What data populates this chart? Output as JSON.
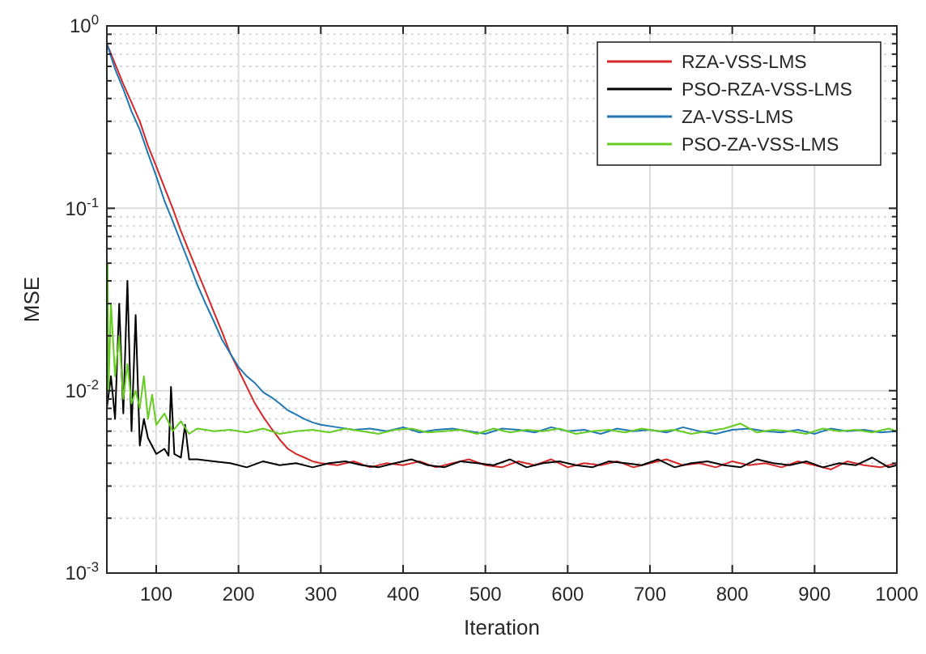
{
  "chart_data": {
    "type": "line",
    "xlabel": "Iteration",
    "ylabel": "MSE",
    "log": "y",
    "grid": true,
    "legend": "top right",
    "line_style": "solid",
    "marker": "none",
    "xlim": [
      40,
      1000
    ],
    "xticks": [
      100,
      200,
      300,
      400,
      500,
      600,
      700,
      800,
      900,
      1000
    ],
    "ylim": [
      0.001,
      1
    ],
    "yticks": [
      {
        "value": 0.001,
        "label": "10$^{-3}$"
      },
      {
        "value": 0.01,
        "label": "10$^{-2}$"
      },
      {
        "value": 0.1,
        "label": "10$^{-1}$"
      },
      {
        "value": 1,
        "label": "10$^{0}$"
      }
    ],
    "series": [
      {
        "name": "RZA-VSS-LMS",
        "color": "#d62728",
        "x": [
          40,
          50,
          60,
          70,
          80,
          90,
          100,
          110,
          120,
          130,
          140,
          150,
          160,
          170,
          180,
          190,
          200,
          210,
          220,
          230,
          240,
          250,
          260,
          270,
          280,
          290,
          300,
          320,
          340,
          360,
          380,
          400,
          420,
          440,
          460,
          480,
          500,
          520,
          540,
          560,
          580,
          600,
          620,
          640,
          660,
          680,
          700,
          720,
          740,
          760,
          780,
          800,
          820,
          840,
          860,
          880,
          900,
          920,
          940,
          960,
          980,
          1000
        ],
        "values": [
          0.8,
          0.62,
          0.48,
          0.38,
          0.3,
          0.22,
          0.17,
          0.13,
          0.1,
          0.075,
          0.058,
          0.045,
          0.035,
          0.027,
          0.021,
          0.016,
          0.013,
          0.0105,
          0.0085,
          0.0072,
          0.0062,
          0.0054,
          0.0048,
          0.0045,
          0.0043,
          0.0041,
          0.004,
          0.0039,
          0.0041,
          0.0038,
          0.004,
          0.0039,
          0.0041,
          0.0038,
          0.004,
          0.0042,
          0.0039,
          0.0038,
          0.0041,
          0.0039,
          0.0042,
          0.0038,
          0.004,
          0.0039,
          0.0041,
          0.0038,
          0.004,
          0.0042,
          0.0039,
          0.004,
          0.0038,
          0.0041,
          0.0039,
          0.004,
          0.0038,
          0.0041,
          0.0039,
          0.0037,
          0.0041,
          0.0039,
          0.0038,
          0.004
        ]
      },
      {
        "name": "PSO-RZA-VSS-LMS",
        "color": "#000000",
        "x": [
          40,
          45,
          50,
          55,
          60,
          65,
          70,
          75,
          80,
          85,
          90,
          100,
          110,
          115,
          118,
          122,
          130,
          135,
          140,
          150,
          170,
          190,
          210,
          230,
          250,
          270,
          290,
          310,
          330,
          350,
          370,
          390,
          410,
          430,
          450,
          470,
          490,
          510,
          530,
          550,
          570,
          590,
          610,
          630,
          650,
          670,
          690,
          710,
          730,
          750,
          770,
          790,
          810,
          830,
          850,
          870,
          890,
          910,
          930,
          950,
          970,
          990,
          1000
        ],
        "values": [
          0.008,
          0.012,
          0.007,
          0.03,
          0.0075,
          0.04,
          0.006,
          0.026,
          0.005,
          0.007,
          0.0055,
          0.0045,
          0.0048,
          0.0044,
          0.0105,
          0.0045,
          0.0043,
          0.0065,
          0.0042,
          0.0042,
          0.0041,
          0.004,
          0.0038,
          0.0041,
          0.0039,
          0.004,
          0.0038,
          0.004,
          0.0041,
          0.0039,
          0.0038,
          0.004,
          0.0042,
          0.0039,
          0.0038,
          0.0041,
          0.004,
          0.0039,
          0.0042,
          0.0038,
          0.004,
          0.0041,
          0.0039,
          0.0038,
          0.0041,
          0.004,
          0.0039,
          0.0042,
          0.0038,
          0.004,
          0.0041,
          0.0039,
          0.0038,
          0.0042,
          0.004,
          0.0039,
          0.0041,
          0.0038,
          0.004,
          0.0039,
          0.0043,
          0.0038,
          0.0039
        ]
      },
      {
        "name": "ZA-VSS-LMS",
        "color": "#1f77b4",
        "x": [
          40,
          50,
          60,
          70,
          80,
          90,
          100,
          110,
          120,
          130,
          140,
          150,
          160,
          170,
          180,
          190,
          200,
          210,
          220,
          230,
          240,
          250,
          260,
          270,
          280,
          290,
          300,
          320,
          340,
          360,
          380,
          400,
          420,
          440,
          460,
          480,
          500,
          520,
          540,
          560,
          580,
          600,
          620,
          640,
          660,
          680,
          700,
          720,
          740,
          760,
          780,
          800,
          820,
          840,
          860,
          880,
          900,
          920,
          940,
          960,
          980,
          1000
        ],
        "values": [
          0.8,
          0.58,
          0.45,
          0.34,
          0.27,
          0.2,
          0.15,
          0.11,
          0.085,
          0.065,
          0.05,
          0.038,
          0.03,
          0.024,
          0.019,
          0.016,
          0.0135,
          0.012,
          0.011,
          0.0098,
          0.0092,
          0.0085,
          0.0078,
          0.0074,
          0.007,
          0.0067,
          0.0065,
          0.0063,
          0.0061,
          0.0062,
          0.006,
          0.0063,
          0.0059,
          0.0061,
          0.0062,
          0.006,
          0.0058,
          0.0062,
          0.0061,
          0.0059,
          0.0063,
          0.006,
          0.0061,
          0.0058,
          0.0062,
          0.006,
          0.0061,
          0.0059,
          0.0063,
          0.006,
          0.0058,
          0.0061,
          0.0062,
          0.006,
          0.0059,
          0.0061,
          0.0058,
          0.0062,
          0.006,
          0.0061,
          0.0059,
          0.006
        ]
      },
      {
        "name": "PSO-ZA-VSS-LMS",
        "color": "#66cc22",
        "x": [
          41,
          42,
          45,
          50,
          55,
          60,
          65,
          70,
          75,
          80,
          85,
          90,
          95,
          100,
          110,
          120,
          130,
          140,
          150,
          170,
          190,
          210,
          230,
          250,
          270,
          290,
          310,
          330,
          350,
          370,
          390,
          410,
          430,
          450,
          470,
          490,
          510,
          530,
          550,
          570,
          590,
          610,
          630,
          650,
          670,
          690,
          710,
          730,
          750,
          770,
          790,
          810,
          830,
          850,
          870,
          890,
          910,
          930,
          950,
          970,
          990,
          1000
        ],
        "values": [
          0.05,
          0.01,
          0.03,
          0.012,
          0.02,
          0.009,
          0.014,
          0.0085,
          0.01,
          0.008,
          0.012,
          0.007,
          0.0095,
          0.0065,
          0.0075,
          0.006,
          0.0068,
          0.0058,
          0.0062,
          0.006,
          0.0061,
          0.0059,
          0.0062,
          0.0058,
          0.006,
          0.0061,
          0.0059,
          0.0062,
          0.006,
          0.0058,
          0.0061,
          0.0062,
          0.0059,
          0.006,
          0.0061,
          0.0058,
          0.0062,
          0.0059,
          0.0061,
          0.006,
          0.0062,
          0.0058,
          0.006,
          0.0061,
          0.0059,
          0.0062,
          0.006,
          0.0061,
          0.0058,
          0.006,
          0.0062,
          0.0066,
          0.0059,
          0.0061,
          0.006,
          0.0058,
          0.0062,
          0.006,
          0.0061,
          0.0059,
          0.0062,
          0.006
        ]
      }
    ]
  }
}
